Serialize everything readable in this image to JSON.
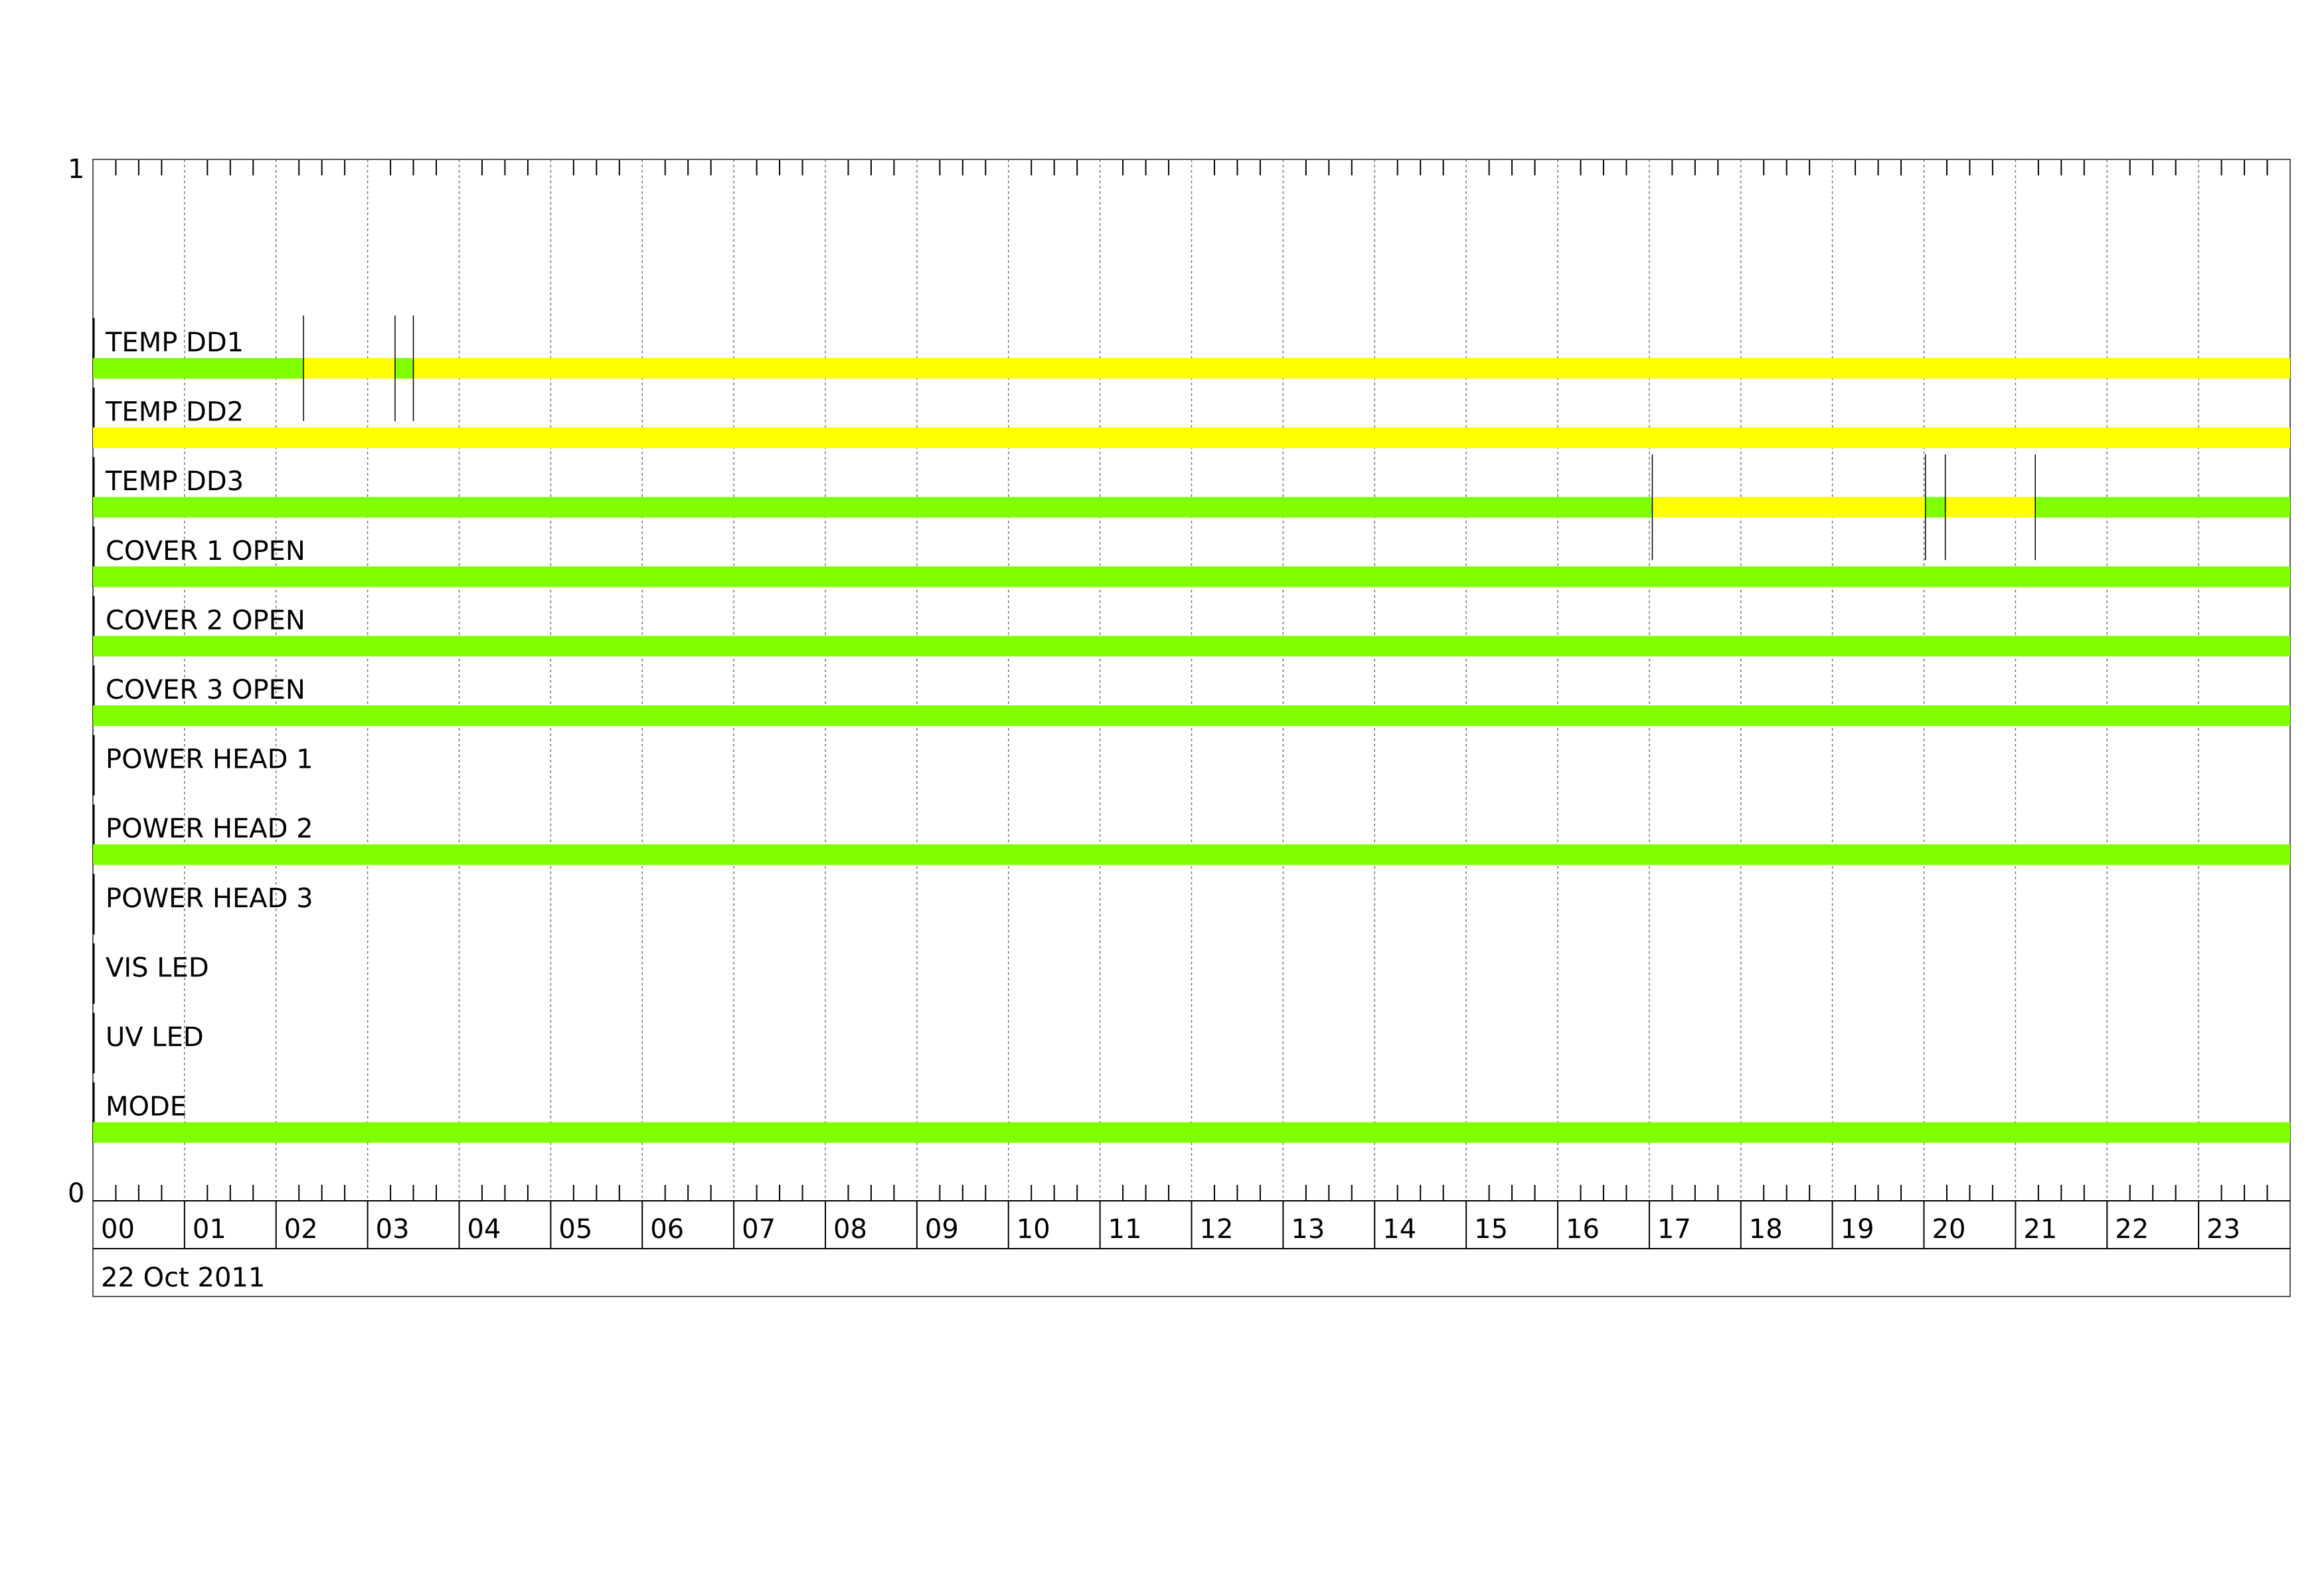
{
  "chart_data": {
    "type": "timeline",
    "date_label": "22 Oct 2011",
    "y_ticks": [
      "1",
      "0"
    ],
    "x_ticks": [
      "00",
      "01",
      "02",
      "03",
      "04",
      "05",
      "06",
      "07",
      "08",
      "09",
      "10",
      "11",
      "12",
      "13",
      "14",
      "15",
      "16",
      "17",
      "18",
      "19",
      "20",
      "21",
      "22",
      "23"
    ],
    "x_range_hours": [
      0,
      24
    ],
    "minor_ticks_per_hour": 4,
    "grid": true,
    "colors": {
      "ok": "#7FFF00",
      "warn": "#FFFF00"
    },
    "rows": [
      {
        "label": "TEMP DD1",
        "segments": [
          {
            "start": "00:00",
            "end": "02:18",
            "state": "ok"
          },
          {
            "start": "02:18",
            "end": "03:18",
            "state": "warn"
          },
          {
            "start": "03:18",
            "end": "03:30",
            "state": "ok"
          },
          {
            "start": "03:30",
            "end": "24:00",
            "state": "warn"
          }
        ]
      },
      {
        "label": "TEMP DD2",
        "segments": [
          {
            "start": "00:00",
            "end": "24:00",
            "state": "warn"
          }
        ]
      },
      {
        "label": "TEMP DD3",
        "segments": [
          {
            "start": "00:00",
            "end": "17:02",
            "state": "ok"
          },
          {
            "start": "17:02",
            "end": "20:01",
            "state": "warn"
          },
          {
            "start": "20:01",
            "end": "20:14",
            "state": "ok"
          },
          {
            "start": "20:14",
            "end": "21:13",
            "state": "warn"
          },
          {
            "start": "21:13",
            "end": "24:00",
            "state": "ok"
          }
        ]
      },
      {
        "label": "COVER 1 OPEN",
        "segments": [
          {
            "start": "00:00",
            "end": "24:00",
            "state": "ok"
          }
        ]
      },
      {
        "label": "COVER 2 OPEN",
        "segments": [
          {
            "start": "00:00",
            "end": "24:00",
            "state": "ok"
          }
        ]
      },
      {
        "label": "COVER 3 OPEN",
        "segments": [
          {
            "start": "00:00",
            "end": "24:00",
            "state": "ok"
          }
        ]
      },
      {
        "label": "POWER HEAD 1",
        "segments": []
      },
      {
        "label": "POWER HEAD 2",
        "segments": [
          {
            "start": "00:00",
            "end": "24:00",
            "state": "ok"
          }
        ]
      },
      {
        "label": "POWER HEAD 3",
        "segments": []
      },
      {
        "label": "VIS LED",
        "segments": []
      },
      {
        "label": "UV LED",
        "segments": []
      },
      {
        "label": "MODE",
        "segments": [
          {
            "start": "00:00",
            "end": "24:00",
            "state": "ok"
          }
        ]
      }
    ]
  }
}
